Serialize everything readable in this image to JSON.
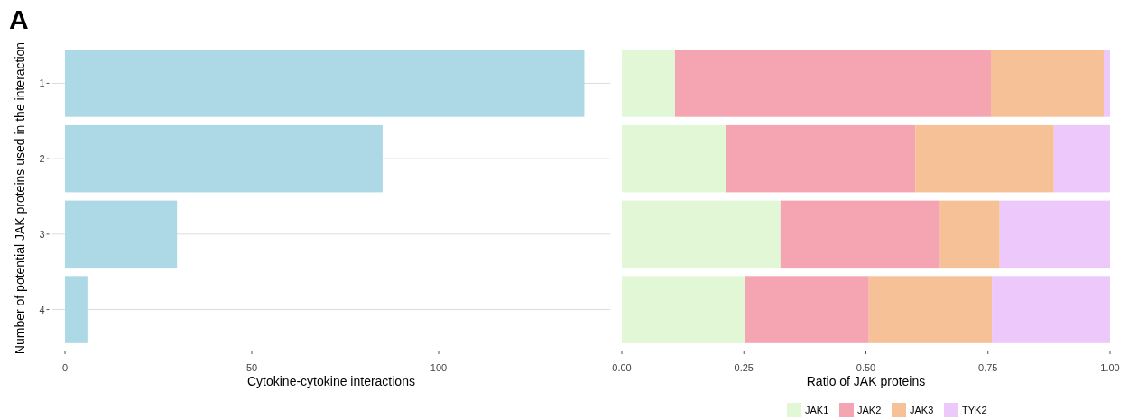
{
  "chart_data": [
    {
      "type": "bar",
      "orientation": "horizontal",
      "annotations": [
        "A"
      ],
      "xlabel": "Cytokine-cytokine interactions",
      "ylabel": "Number of potential JAK proteins used in the interaction",
      "categories": [
        "1",
        "2",
        "3",
        "4"
      ],
      "series": [
        {
          "color": "#add8e6",
          "values": [
            139,
            85,
            30,
            6
          ]
        }
      ],
      "xlim": [
        -3.5,
        146
      ],
      "xticks": [
        0,
        50,
        100
      ],
      "grid": "y",
      "legend": false
    },
    {
      "type": "bar",
      "orientation": "horizontal",
      "stacked": true,
      "xlabel": "Ratio of JAK proteins",
      "categories": [
        "1",
        "2",
        "3",
        "4"
      ],
      "series": [
        {
          "name": "JAK1",
          "color": "#e1f7d5",
          "values": [
            0.109,
            0.214,
            0.325,
            0.253
          ]
        },
        {
          "name": "JAK2",
          "color": "#f4a5b1",
          "values": [
            0.647,
            0.387,
            0.327,
            0.253
          ]
        },
        {
          "name": "JAK3",
          "color": "#f6c196",
          "values": [
            0.231,
            0.284,
            0.122,
            0.252
          ]
        },
        {
          "name": "TYK2",
          "color": "#ecc8fb",
          "values": [
            0.013,
            0.115,
            0.226,
            0.242
          ]
        }
      ],
      "xlim": [
        0,
        1
      ],
      "xticks": [
        {
          "value": 0,
          "label": "0.00"
        },
        {
          "value": 0.25,
          "label": "0.25"
        },
        {
          "value": 0.5,
          "label": "0.50"
        },
        {
          "value": 0.75,
          "label": "0.75"
        },
        {
          "value": 1,
          "label": "1.00"
        }
      ],
      "tick_labels": "x",
      "grid": false,
      "legend": "bottom"
    }
  ]
}
